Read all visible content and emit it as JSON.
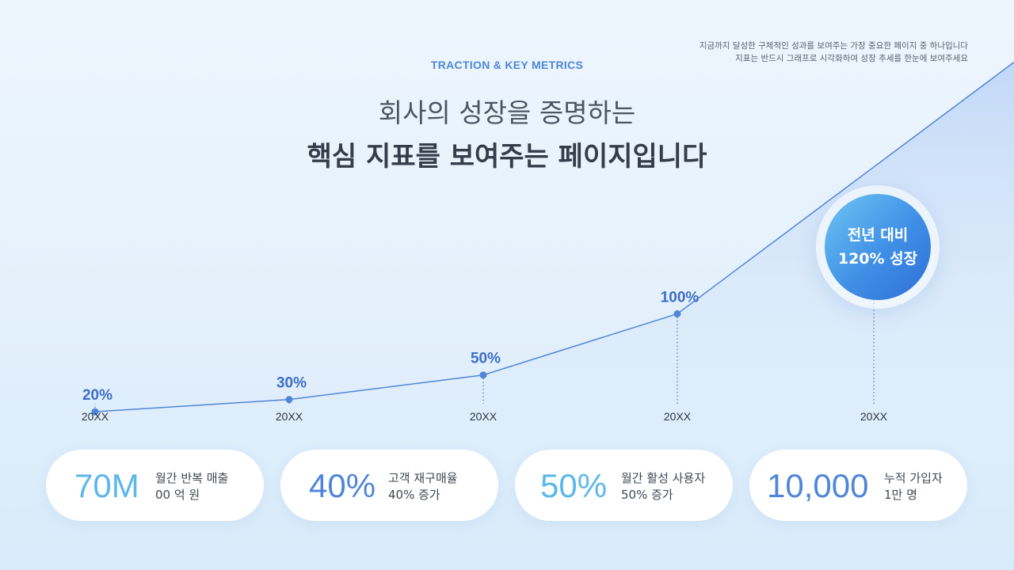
{
  "note": {
    "line1": "지금까지 달성한 구체적인 성과를 보여주는 가장 중요한 페이지 중 하나입니다",
    "line2": "지표는 반드시 그래프로 시각화하여 성장 추세를 한눈에 보여주세요"
  },
  "header": {
    "eyebrow": "TRACTION & KEY METRICS",
    "title_line1": "회사의 성장을 증명하는",
    "title_line2": "핵심 지표를 보여주는 페이지입니다"
  },
  "chart_data": {
    "type": "line",
    "categories": [
      "20XX",
      "20XX",
      "20XX",
      "20XX",
      "20XX"
    ],
    "values": [
      20,
      30,
      50,
      100,
      220
    ],
    "data_labels": [
      "20%",
      "30%",
      "50%",
      "100%",
      ""
    ],
    "title": "",
    "xlabel": "",
    "ylabel": "",
    "ylim": [
      0,
      350
    ],
    "grid": false,
    "legend": "none",
    "line_color": "#4f86d9",
    "label_color": "#3d6fc7"
  },
  "badge": {
    "line1": "전년 대비",
    "line2": "120% 성장"
  },
  "metrics": [
    {
      "value": "70M",
      "label1": "월간 반복 매출",
      "label2": "00 억 원",
      "color": "#5cb8ea"
    },
    {
      "value": "40%",
      "label1": "고객 재구매율",
      "label2": "40% 증가",
      "color": "#4f86d9"
    },
    {
      "value": "50%",
      "label1": "월간 활성 사용자",
      "label2": "50% 증가",
      "color": "#5cb8ea"
    },
    {
      "value": "10,000",
      "label1": "누적 가입자",
      "label2": "1만 명",
      "color": "#4f86d9"
    }
  ]
}
